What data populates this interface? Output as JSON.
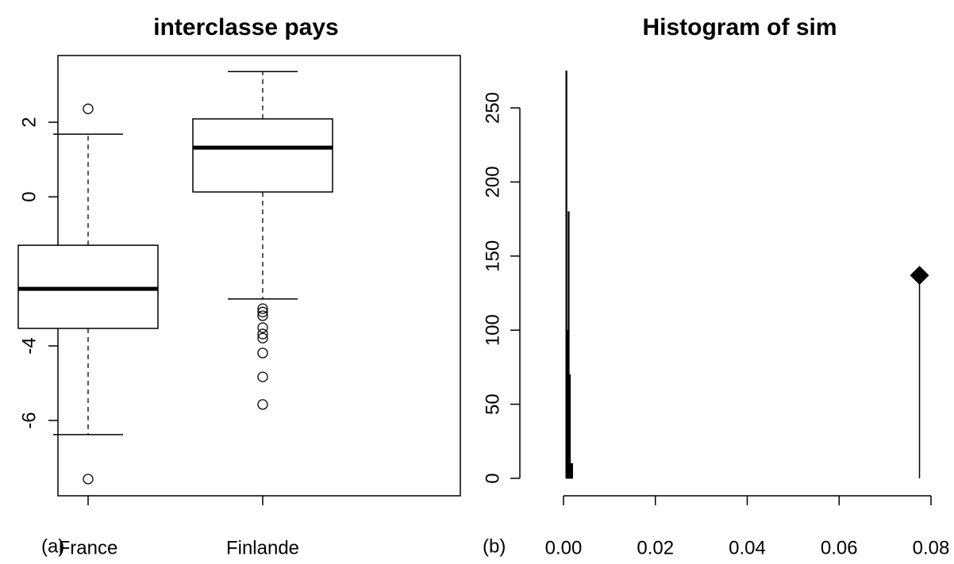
{
  "chart_data": [
    {
      "type": "box",
      "title": "interclasse pays",
      "annotation": "(a)",
      "categories": [
        "France",
        "Finlande"
      ],
      "series": [
        {
          "name": "France",
          "whisker_low": -6.38,
          "q1": -3.53,
          "median": -2.47,
          "q3": -1.3,
          "whisker_high": 1.68,
          "outliers": [
            2.36,
            -7.57
          ]
        },
        {
          "name": "Finlande",
          "whisker_low": -2.74,
          "q1": 0.13,
          "median": 1.32,
          "q3": 2.09,
          "whisker_high": 3.36,
          "outliers": [
            -3.0,
            -3.09,
            -3.19,
            -3.51,
            -3.68,
            -3.79,
            -4.19,
            -4.83,
            -5.57
          ]
        }
      ],
      "color": "#000000",
      "ylim": [
        -8.02,
        3.79
      ],
      "yticks": [
        -6,
        -4,
        -2,
        0,
        2
      ]
    },
    {
      "type": "histogram",
      "title": "Histogram of sim",
      "annotation": "(b)",
      "bins": [
        0.0005,
        0.00075,
        0.001,
        0.00125,
        0.0015,
        0.00175,
        0.002
      ],
      "counts": [
        275,
        100,
        180,
        70,
        10,
        10
      ],
      "marker": {
        "x": 0.0775,
        "y": 137
      },
      "color": "#000000",
      "xlim": [
        0,
        0.08
      ],
      "xticks": [
        {
          "value": 0,
          "label": "0.00"
        },
        0.02,
        0.04,
        0.06,
        0.08
      ],
      "ylim": [
        0,
        250
      ],
      "yticks": [
        0,
        50,
        100,
        150,
        200,
        250
      ]
    }
  ]
}
